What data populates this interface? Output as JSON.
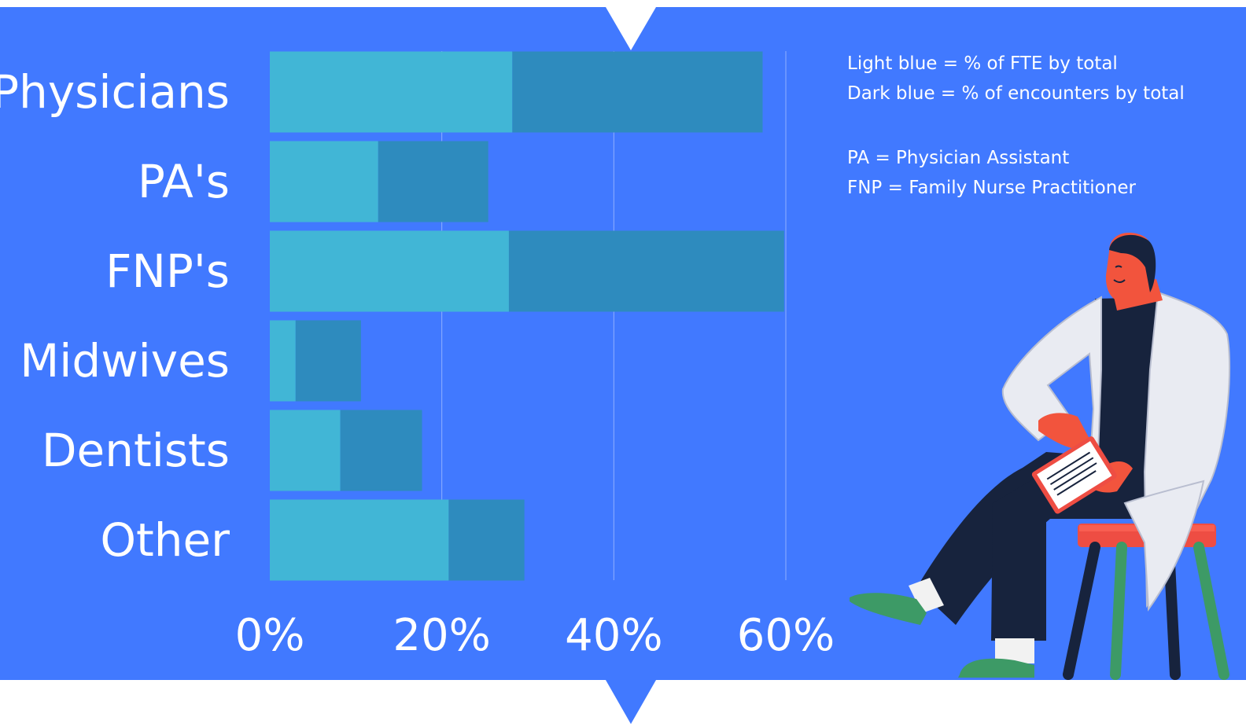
{
  "chart_data": {
    "type": "bar",
    "stacked": true,
    "orientation": "horizontal",
    "categories": [
      "Physicians",
      "PA's",
      "FNP's",
      "Midwives",
      "Dentists",
      "Other"
    ],
    "series": [
      {
        "name": "Light blue = % of FTE by total",
        "color": "#41B6D6",
        "values": [
          28.2,
          12.6,
          27.8,
          3.0,
          8.2,
          20.8
        ]
      },
      {
        "name": "Dark blue = % of encounters by total",
        "color": "#2E8BBE",
        "values": [
          29.1,
          12.8,
          32.0,
          7.6,
          9.5,
          8.8
        ]
      }
    ],
    "xlim": [
      0,
      60
    ],
    "x_ticks": [
      "0%",
      "20%",
      "40%",
      "60%"
    ],
    "grid": true,
    "legend_placement": "top-right"
  },
  "notes": {
    "legend_line_1": "Light blue = % of FTE by total",
    "legend_line_2": "Dark blue = % of encounters by total",
    "abbrev_1": "PA = Physician Assistant",
    "abbrev_2": "FNP = Family Nurse Practitioner"
  },
  "colors": {
    "background": "#4179FF",
    "fte": "#41B6D6",
    "encounters": "#2E8BBE",
    "gridline": "#8FB0FF",
    "text": "#FFFFFF",
    "page": "#FFFFFF"
  },
  "decoration": {
    "illustration": "doctor-reading-clipboard-on-stool"
  }
}
